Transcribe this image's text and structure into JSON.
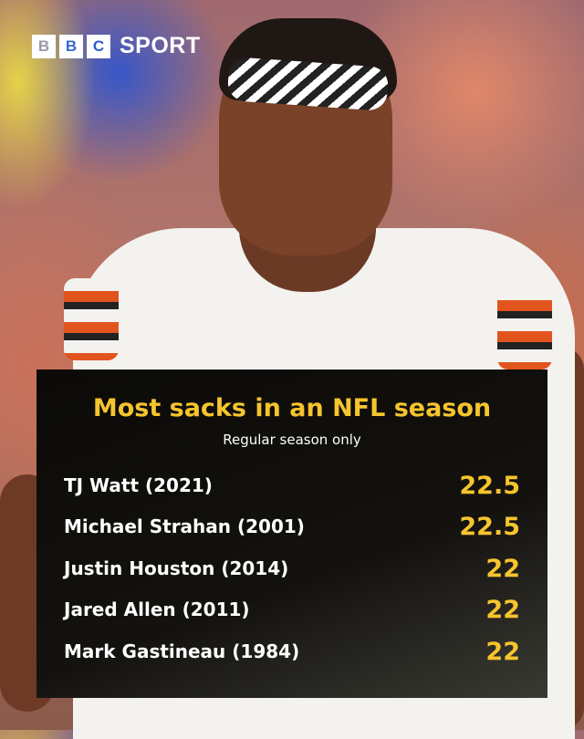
{
  "brand": {
    "letters": [
      "B",
      "B",
      "C"
    ],
    "sport": "SPORT"
  },
  "table": {
    "title": "Most sacks in an NFL season",
    "subtitle": "Regular season only",
    "rows": [
      {
        "name": "TJ Watt (2021)",
        "value": "22.5"
      },
      {
        "name": "Michael Strahan (2001)",
        "value": "22.5"
      },
      {
        "name": "Justin Houston (2014)",
        "value": "22"
      },
      {
        "name": "Jared Allen (2011)",
        "value": "22"
      },
      {
        "name": "Mark Gastineau (1984)",
        "value": "22"
      }
    ]
  },
  "colors": {
    "accent": "#f6c42d",
    "panel": "#0b0a08"
  }
}
